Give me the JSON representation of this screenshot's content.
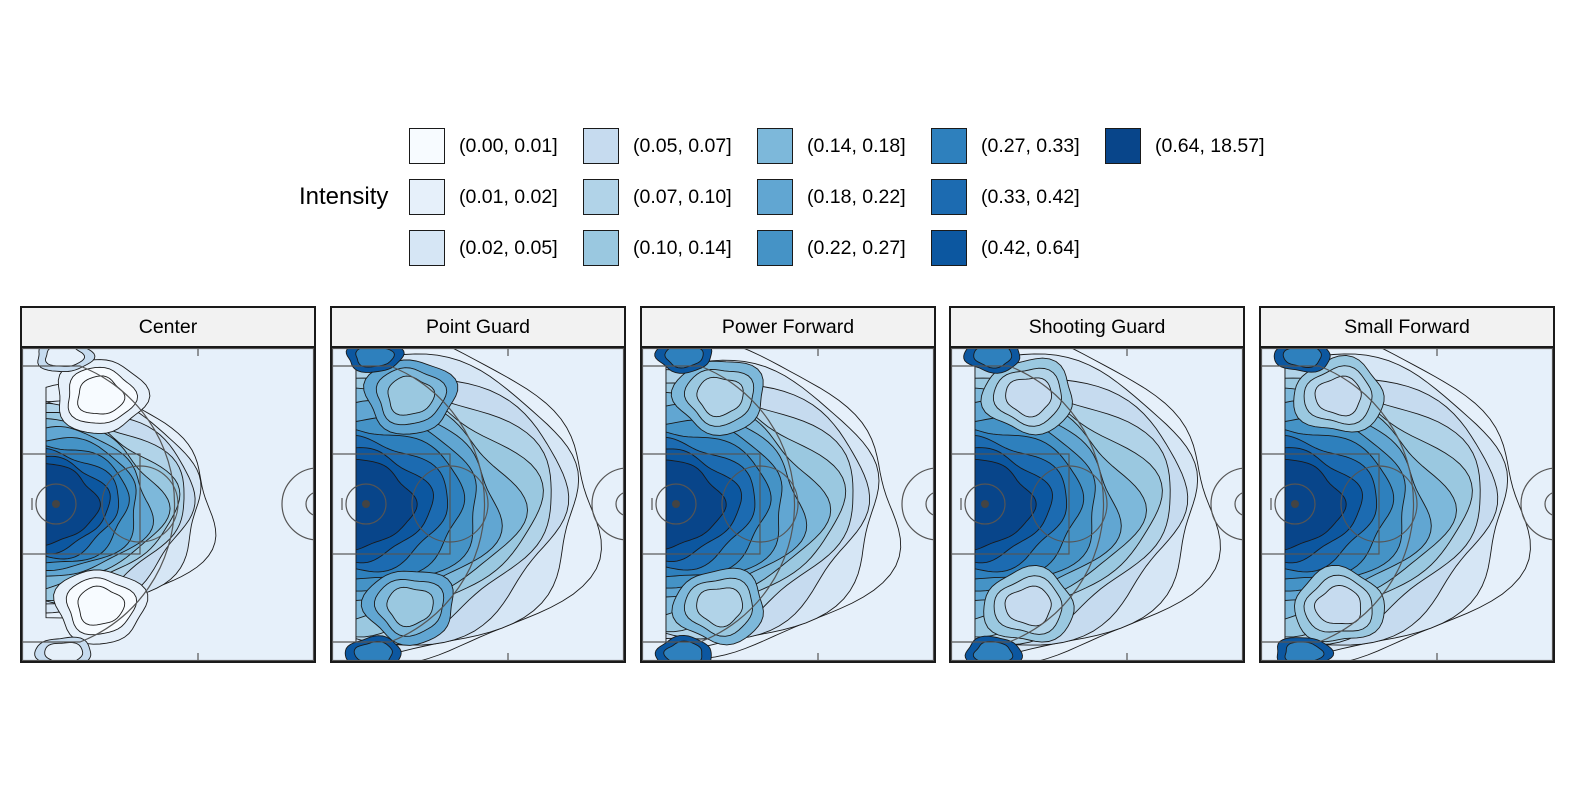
{
  "chart_data": {
    "type": "heatmap",
    "legend": {
      "title": "Intensity",
      "bins": [
        {
          "label": "(0.00, 0.01]",
          "color": "#f7fbff"
        },
        {
          "label": "(0.01, 0.02]",
          "color": "#e6f0fa"
        },
        {
          "label": "(0.02, 0.05]",
          "color": "#d6e6f5"
        },
        {
          "label": "(0.05, 0.07]",
          "color": "#c6dbef"
        },
        {
          "label": "(0.07, 0.10]",
          "color": "#b1d3e8"
        },
        {
          "label": "(0.10, 0.14]",
          "color": "#9ac8e0"
        },
        {
          "label": "(0.14, 0.18]",
          "color": "#7db8da"
        },
        {
          "label": "(0.18, 0.22]",
          "color": "#61a6d2"
        },
        {
          "label": "(0.22, 0.27]",
          "color": "#4593c6"
        },
        {
          "label": "(0.27, 0.33]",
          "color": "#2e80bd"
        },
        {
          "label": "(0.33, 0.42]",
          "color": "#1c6bb1"
        },
        {
          "label": "(0.42, 0.64]",
          "color": "#0c57a0"
        },
        {
          "label": "(0.64, 18.57]",
          "color": "#08458a"
        }
      ]
    },
    "panels": [
      {
        "title": "Center",
        "basket_level": 12,
        "arc_level": 5,
        "wing_level": 1,
        "corner_level": 3
      },
      {
        "title": "Point Guard",
        "basket_level": 12,
        "arc_level": 12,
        "wing_level": 7,
        "corner_level": 11
      },
      {
        "title": "Power Forward",
        "basket_level": 12,
        "arc_level": 11,
        "wing_level": 6,
        "corner_level": 11
      },
      {
        "title": "Shooting Guard",
        "basket_level": 12,
        "arc_level": 12,
        "wing_level": 5,
        "corner_level": 11
      },
      {
        "title": "Small Forward",
        "basket_level": 12,
        "arc_level": 12,
        "wing_level": 5,
        "corner_level": 11
      }
    ]
  }
}
